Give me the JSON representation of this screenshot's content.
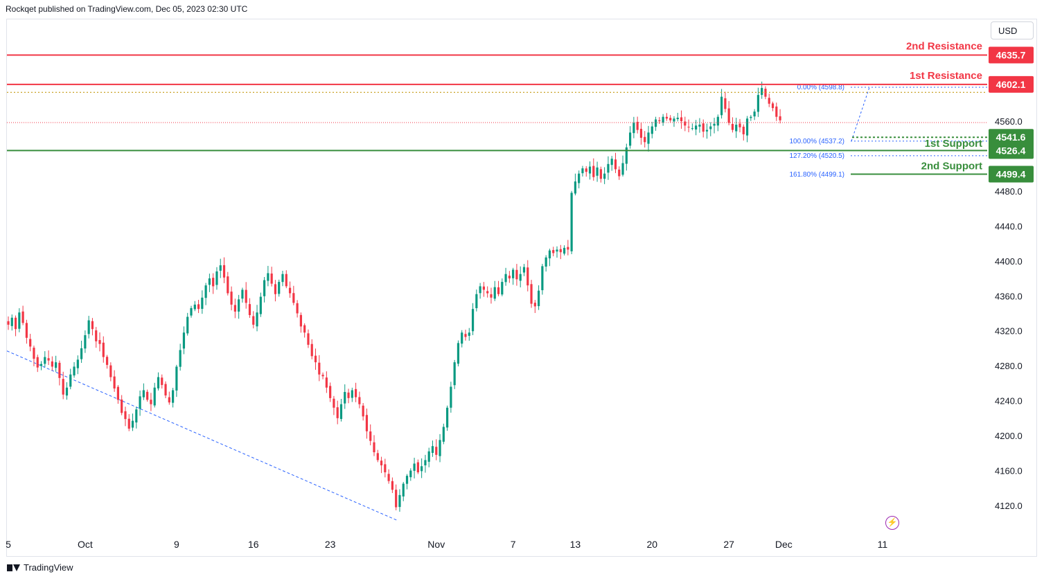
{
  "header": {
    "published": "Rockqet published on TradingView.com, Dec 05, 2023 02:30 UTC"
  },
  "currency": "USD",
  "footer": {
    "brand": "TradingView",
    "logo_icon": "tradingview-logo-icon"
  },
  "colors": {
    "up": "#089981",
    "down": "#f23645",
    "resistance": "#f23645",
    "support": "#388e3c",
    "fib": "#2962ff",
    "dotted_gold": "#c9a227",
    "trend": "#2962ff"
  },
  "chart_data": {
    "type": "candlestick",
    "ylim": [
      4095,
      4655
    ],
    "yticks": [
      4120,
      4160,
      4200,
      4240,
      4280,
      4320,
      4360,
      4400,
      4440,
      4480,
      4560
    ],
    "ytick_labels": [
      "4120.0",
      "4160.0",
      "4200.0",
      "4240.0",
      "4280.0",
      "4320.0",
      "4360.0",
      "4400.0",
      "4440.0",
      "4480.0",
      "4560.0"
    ],
    "xticks": [
      {
        "label": "5",
        "index": 0
      },
      {
        "label": "Oct",
        "index": 21
      },
      {
        "label": "9",
        "index": 46
      },
      {
        "label": "16",
        "index": 67
      },
      {
        "label": "23",
        "index": 88
      },
      {
        "label": "Nov",
        "index": 117
      },
      {
        "label": "7",
        "index": 138
      },
      {
        "label": "13",
        "index": 155
      },
      {
        "label": "20",
        "index": 176
      },
      {
        "label": "27",
        "index": 197
      },
      {
        "label": "Dec",
        "index": 212
      },
      {
        "label": "11",
        "index": 239
      }
    ],
    "levels": [
      {
        "name": "2nd Resistance",
        "value": 4635.7,
        "label": "4635.7",
        "kind": "resistance"
      },
      {
        "name": "1st Resistance",
        "value": 4602.1,
        "label": "4602.1",
        "kind": "resistance"
      },
      {
        "name": "1st Support",
        "value": 4541.6,
        "label": "4541.6",
        "kind": "support"
      },
      {
        "name": "2nd Support",
        "value": 4526.4,
        "label": "4526.4",
        "kind": "support"
      },
      {
        "name": "",
        "value": 4499.4,
        "label": "4499.4",
        "kind": "support"
      }
    ],
    "fibonacci": [
      {
        "label": "0.00% (4598.8)",
        "value": 4598.8
      },
      {
        "label": "100.00% (4537.2)",
        "value": 4537.2
      },
      {
        "label": "127.20% (4520.5)",
        "value": 4520.5
      },
      {
        "label": "161.80% (4499.1)",
        "value": 4499.1
      }
    ],
    "last_price": 4560,
    "trendline": [
      {
        "index": 0,
        "price": 4297
      },
      {
        "index": 105,
        "price": 4103
      }
    ],
    "closes": [
      4327,
      4335,
      4322,
      4341,
      4329,
      4312,
      4302,
      4288,
      4278,
      4282,
      4290,
      4286,
      4279,
      4284,
      4266,
      4247,
      4255,
      4270,
      4279,
      4287,
      4300,
      4315,
      4332,
      4322,
      4308,
      4305,
      4290,
      4281,
      4267,
      4254,
      4241,
      4226,
      4219,
      4208,
      4217,
      4230,
      4245,
      4252,
      4241,
      4236,
      4255,
      4267,
      4258,
      4246,
      4238,
      4252,
      4279,
      4298,
      4318,
      4336,
      4346,
      4350,
      4345,
      4358,
      4372,
      4380,
      4371,
      4388,
      4395,
      4381,
      4363,
      4350,
      4342,
      4356,
      4367,
      4352,
      4338,
      4327,
      4341,
      4359,
      4378,
      4386,
      4374,
      4362,
      4376,
      4385,
      4371,
      4363,
      4352,
      4340,
      4325,
      4318,
      4304,
      4291,
      4284,
      4270,
      4268,
      4255,
      4243,
      4232,
      4220,
      4236,
      4250,
      4243,
      4252,
      4244,
      4236,
      4222,
      4205,
      4194,
      4181,
      4172,
      4166,
      4158,
      4148,
      4138,
      4118,
      4132,
      4145,
      4154,
      4160,
      4168,
      4158,
      4165,
      4172,
      4182,
      4188,
      4178,
      4195,
      4210,
      4232,
      4256,
      4284,
      4306,
      4318,
      4313,
      4318,
      4345,
      4362,
      4371,
      4367,
      4363,
      4358,
      4370,
      4362,
      4376,
      4385,
      4380,
      4390,
      4379,
      4385,
      4393,
      4372,
      4351,
      4348,
      4366,
      4394,
      4404,
      4412,
      4409,
      4413,
      4410,
      4415,
      4413,
      4478,
      4491,
      4500,
      4506,
      4502,
      4508,
      4496,
      4507,
      4494,
      4500,
      4511,
      4517,
      4505,
      4497,
      4512,
      4530,
      4547,
      4558,
      4550,
      4541,
      4536,
      4547,
      4554,
      4562,
      4560,
      4565,
      4563,
      4561,
      4563,
      4564,
      4560,
      4555,
      4553,
      4552,
      4555,
      4556,
      4548,
      4550,
      4554,
      4557,
      4565,
      4588,
      4574,
      4558,
      4550,
      4556,
      4553,
      4545,
      4563,
      4565,
      4571,
      4590,
      4598,
      4588,
      4580,
      4575,
      4565,
      4561
    ]
  }
}
